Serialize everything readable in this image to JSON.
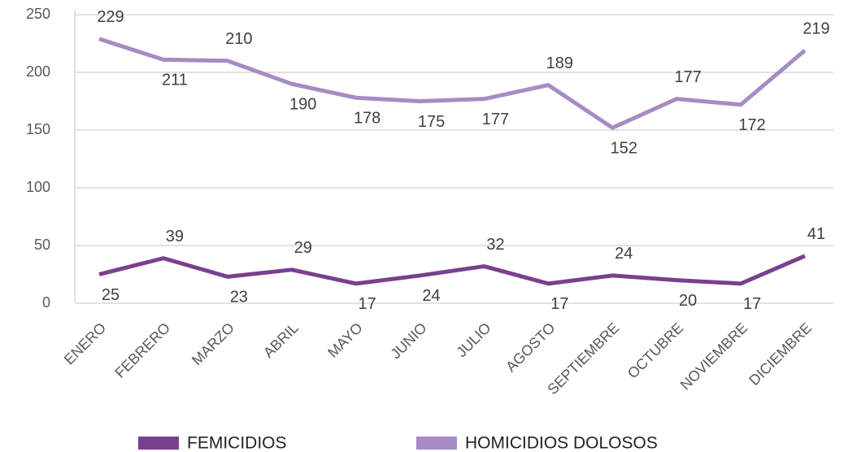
{
  "chart_data": {
    "type": "line",
    "categories": [
      "ENERO",
      "FEBRERO",
      "MARZO",
      "ABRIL",
      "MAYO",
      "JUNIO",
      "JULIO",
      "AGOSTO",
      "SEPTIEMBRE",
      "OCTUBRE",
      "NOVIEMBRE",
      "DICIEMBRE"
    ],
    "series": [
      {
        "name": "FEMICIDIOS",
        "color": "#7b3f8f",
        "values": [
          25,
          39,
          23,
          29,
          17,
          24,
          32,
          17,
          24,
          20,
          17,
          41
        ]
      },
      {
        "name": "HOMICIDIOS DOLOSOS",
        "color": "#a68bc4",
        "values": [
          229,
          211,
          210,
          190,
          178,
          175,
          177,
          189,
          152,
          177,
          172,
          219
        ]
      }
    ],
    "ylim": [
      0,
      250
    ],
    "yticks": [
      0,
      50,
      100,
      150,
      200,
      250
    ],
    "grid": true,
    "legend": "bottom"
  }
}
